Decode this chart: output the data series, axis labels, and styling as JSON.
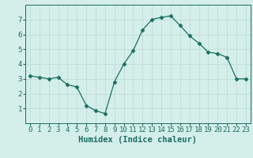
{
  "x": [
    0,
    1,
    2,
    3,
    4,
    5,
    6,
    7,
    8,
    9,
    10,
    11,
    12,
    13,
    14,
    15,
    16,
    17,
    18,
    19,
    20,
    21,
    22,
    23
  ],
  "y": [
    3.2,
    3.1,
    3.0,
    3.1,
    2.6,
    2.45,
    1.2,
    0.85,
    0.65,
    2.8,
    4.0,
    4.9,
    6.3,
    7.0,
    7.15,
    7.25,
    6.6,
    5.9,
    5.4,
    4.8,
    4.7,
    4.45,
    3.0,
    3.0
  ],
  "line_color": "#1a6e62",
  "marker": "D",
  "marker_size": 2.5,
  "bg_color": "#d4eeea",
  "grid_color": "#c0ddd8",
  "xlabel": "Humidex (Indice chaleur)",
  "ylim": [
    0,
    8
  ],
  "xlim": [
    -0.5,
    23.5
  ],
  "yticks": [
    1,
    2,
    3,
    4,
    5,
    6,
    7
  ],
  "xticks": [
    0,
    1,
    2,
    3,
    4,
    5,
    6,
    7,
    8,
    9,
    10,
    11,
    12,
    13,
    14,
    15,
    16,
    17,
    18,
    19,
    20,
    21,
    22,
    23
  ],
  "xlabel_fontsize": 7.5,
  "tick_fontsize": 6.5
}
